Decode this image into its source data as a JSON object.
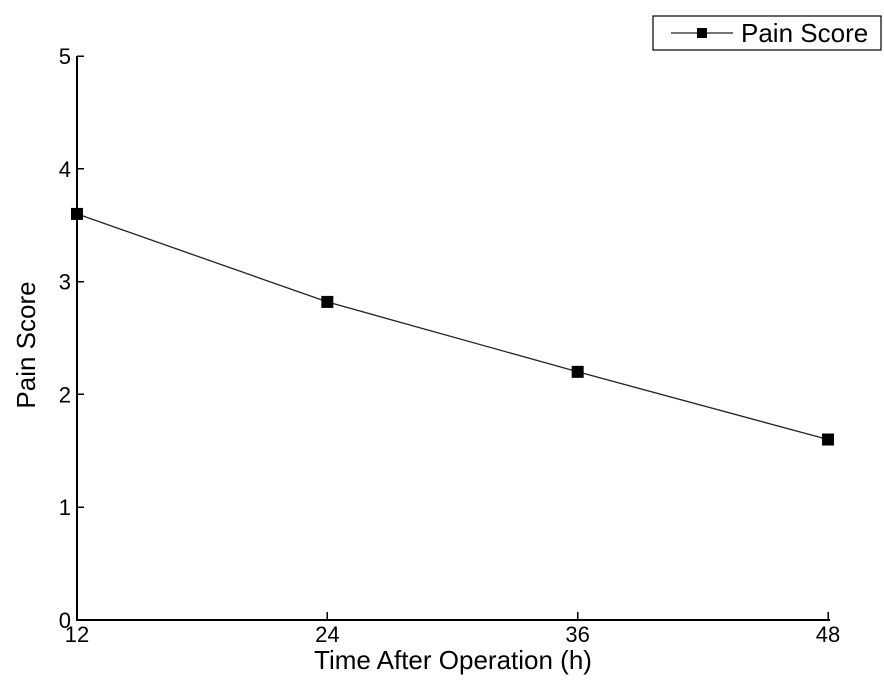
{
  "chart_data": {
    "type": "line",
    "x": [
      12,
      24,
      36,
      48
    ],
    "series": [
      {
        "name": "Pain Score",
        "values": [
          3.6,
          2.82,
          2.2,
          1.6
        ],
        "color": "#000000",
        "marker": "square"
      }
    ],
    "xlabel": "Time After Operation (h)",
    "ylabel": "Pain Score",
    "xlim": [
      12,
      48
    ],
    "ylim": [
      0,
      5
    ],
    "xticks": [
      12,
      24,
      36,
      48
    ],
    "yticks": [
      0,
      1,
      2,
      3,
      4,
      5
    ],
    "grid": false,
    "legend": "top-right"
  }
}
